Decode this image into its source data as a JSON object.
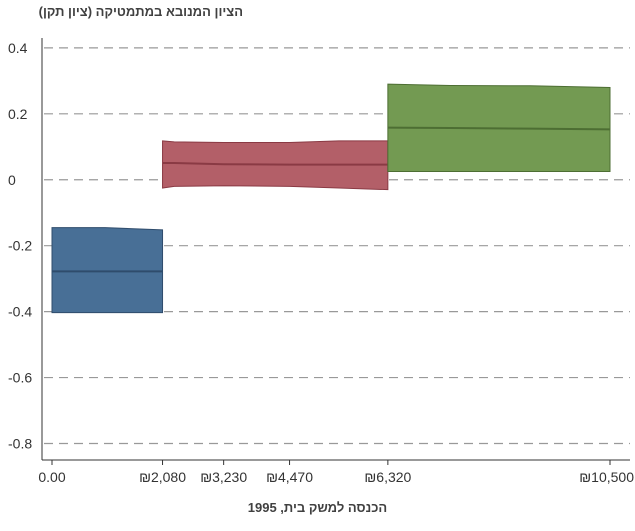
{
  "chart_data": {
    "type": "step-band",
    "ylabel": "הציון המנובא במתמטיקה (ציון תקן)",
    "xlabel": "הכנסה למשק בית, 1995",
    "ylim": [
      -0.85,
      0.43
    ],
    "y_ticks": [
      0.4,
      0.2,
      0,
      -0.2,
      -0.4,
      -0.6,
      -0.8
    ],
    "y_tick_labels": [
      "0.4",
      "0.2",
      "0",
      "-0.2",
      "-0.4",
      "-0.6",
      "-0.8"
    ],
    "x_ticks": [
      0,
      2080,
      3230,
      4470,
      6320,
      10500
    ],
    "x_tick_labels": [
      "0.00",
      "₪2,080",
      "₪3,230",
      "₪4,470",
      "₪6,320",
      "₪10,500"
    ],
    "grid": "horizontal-dashed",
    "colors": {
      "band1_fill": "#486f96",
      "band1_edge": "#2f4c6c",
      "band2_fill": "#b35f68",
      "band2_edge": "#8a3a44",
      "band3_fill": "#739a52",
      "band3_edge": "#4d6e33",
      "grid": "#999999",
      "axis": "#333333",
      "tick_text": "#333333"
    },
    "series": [
      {
        "x": [
          0,
          1000,
          2080
        ],
        "upper": [
          -0.145,
          -0.145,
          -0.152
        ],
        "estimate": [
          -0.278,
          -0.278,
          -0.278
        ],
        "lower": [
          -0.403,
          -0.403,
          -0.403
        ]
      },
      {
        "x": [
          2080,
          2300,
          3230,
          4470,
          5400,
          6320
        ],
        "upper": [
          0.118,
          0.115,
          0.113,
          0.113,
          0.118,
          0.118
        ],
        "estimate": [
          0.051,
          0.051,
          0.047,
          0.046,
          0.046,
          0.046
        ],
        "lower": [
          -0.025,
          -0.02,
          -0.018,
          -0.02,
          -0.025,
          -0.03
        ]
      },
      {
        "x": [
          6320,
          7500,
          9000,
          10500
        ],
        "upper": [
          0.29,
          0.286,
          0.285,
          0.28
        ],
        "estimate": [
          0.158,
          0.157,
          0.155,
          0.153
        ],
        "lower": [
          0.025,
          0.025,
          0.025,
          0.025
        ]
      }
    ]
  }
}
